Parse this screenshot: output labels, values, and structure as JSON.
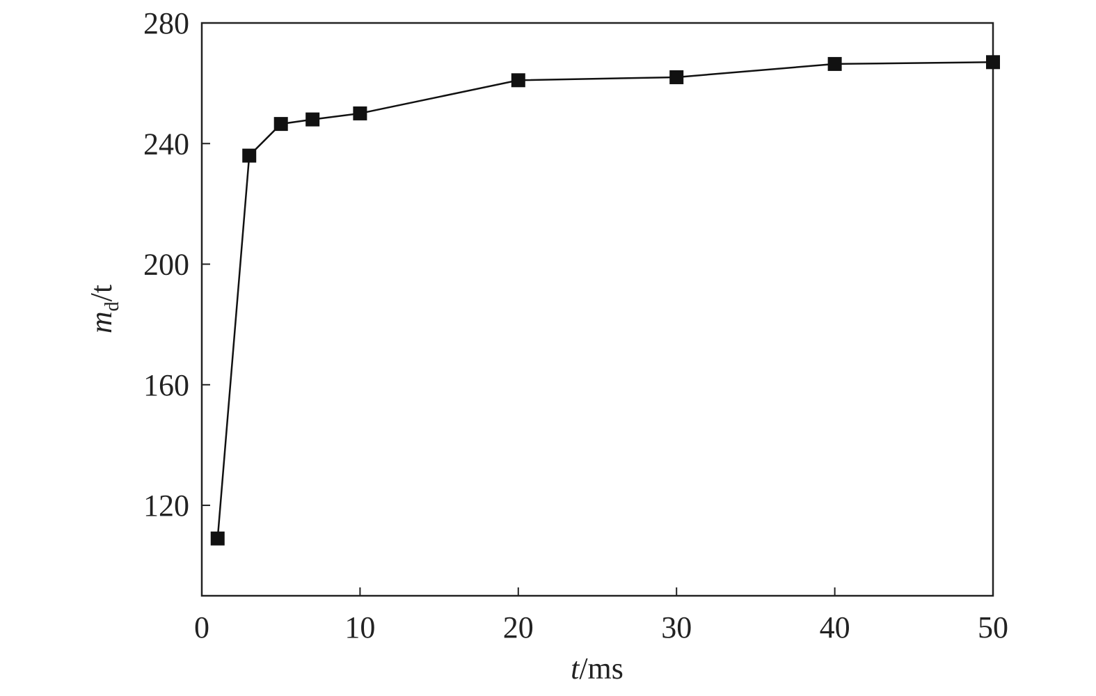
{
  "chart_data": {
    "type": "line",
    "xlabel": {
      "var": "t",
      "unit": "/ms"
    },
    "ylabel": {
      "var": "m",
      "sub": "d",
      "unit": "/t"
    },
    "x": [
      1,
      3,
      5,
      7,
      10,
      20,
      30,
      40,
      50
    ],
    "series": [
      {
        "color": "#111111",
        "values": [
          109,
          236,
          246.5,
          248,
          250,
          261,
          262,
          266.4,
          267
        ]
      }
    ],
    "xlim": [
      0,
      50
    ],
    "xticks": [
      0,
      10,
      20,
      30,
      40,
      50
    ],
    "ylim": [
      90,
      280
    ],
    "yticks": [
      120,
      160,
      200,
      240,
      280
    ],
    "grid": false,
    "marker": "square"
  }
}
